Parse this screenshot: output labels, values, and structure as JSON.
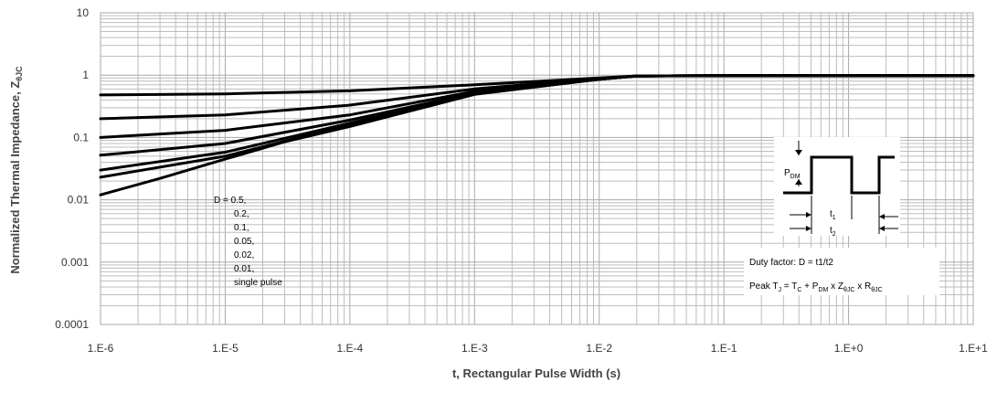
{
  "chart_data": {
    "type": "line",
    "xscale": "log",
    "yscale": "log",
    "xlim": [
      1e-06,
      10
    ],
    "ylim": [
      0.0001,
      10
    ],
    "grid": true,
    "xlabel": "t, Rectangular Pulse Width (s)",
    "ylabel": {
      "main": "Normalized Thermal Impedance, Z",
      "sub": "θJC"
    },
    "x_ticks": [
      {
        "value": 1e-06,
        "label": "1.E-6"
      },
      {
        "value": 1e-05,
        "label": "1.E-5"
      },
      {
        "value": 0.0001,
        "label": "1.E-4"
      },
      {
        "value": 0.001,
        "label": "1.E-3"
      },
      {
        "value": 0.01,
        "label": "1.E-2"
      },
      {
        "value": 0.1,
        "label": "1.E-1"
      },
      {
        "value": 1,
        "label": "1.E+0"
      },
      {
        "value": 10,
        "label": "1.E+1"
      }
    ],
    "y_ticks": [
      {
        "value": 10,
        "label": "10"
      },
      {
        "value": 1,
        "label": "1"
      },
      {
        "value": 0.1,
        "label": "0.1"
      },
      {
        "value": 0.01,
        "label": "0.01"
      },
      {
        "value": 0.001,
        "label": "0.001"
      },
      {
        "value": 0.0001,
        "label": "0.0001"
      }
    ],
    "series": [
      {
        "x": [
          1e-06,
          1e-05,
          0.0001,
          0.001,
          0.01,
          0.02,
          0.1,
          1,
          10
        ],
        "y": [
          0.48,
          0.5,
          0.56,
          0.7,
          0.9,
          0.97,
          0.98,
          0.98,
          0.98
        ]
      },
      {
        "x": [
          1e-06,
          1e-05,
          0.0001,
          0.001,
          0.01,
          0.02,
          0.1,
          1,
          10
        ],
        "y": [
          0.2,
          0.23,
          0.33,
          0.6,
          0.88,
          0.97,
          0.98,
          0.98,
          0.98
        ]
      },
      {
        "x": [
          1e-06,
          1e-05,
          0.0001,
          0.001,
          0.01,
          0.02,
          0.1,
          1,
          10
        ],
        "y": [
          0.1,
          0.13,
          0.23,
          0.55,
          0.87,
          0.97,
          0.98,
          0.98,
          0.98
        ]
      },
      {
        "x": [
          1e-06,
          1e-05,
          0.0001,
          0.001,
          0.01,
          0.02,
          0.1,
          1,
          10
        ],
        "y": [
          0.052,
          0.08,
          0.19,
          0.52,
          0.86,
          0.97,
          0.98,
          0.98,
          0.98
        ]
      },
      {
        "x": [
          1e-06,
          1e-05,
          0.0001,
          0.001,
          0.01,
          0.02,
          0.1,
          1,
          10
        ],
        "y": [
          0.03,
          0.058,
          0.17,
          0.5,
          0.86,
          0.97,
          0.98,
          0.98,
          0.98
        ]
      },
      {
        "x": [
          1e-06,
          1e-05,
          0.0001,
          0.001,
          0.01,
          0.02,
          0.1,
          1,
          10
        ],
        "y": [
          0.023,
          0.05,
          0.16,
          0.5,
          0.86,
          0.97,
          0.98,
          0.98,
          0.98
        ]
      },
      {
        "x": [
          1e-06,
          3e-06,
          1e-05,
          3e-05,
          0.0001,
          0.001,
          0.01,
          0.02,
          0.1,
          1,
          10
        ],
        "y": [
          0.012,
          0.022,
          0.045,
          0.085,
          0.15,
          0.49,
          0.86,
          0.97,
          0.98,
          0.98,
          0.98
        ]
      }
    ],
    "legend_text": [
      "D = 0.5,",
      "0.2,",
      "0.1,",
      "0.05,",
      "0.02,",
      "0.01,",
      "single pulse"
    ],
    "inset": {
      "pdm": {
        "main": "P",
        "sub": "DM"
      },
      "t1": {
        "main": "t",
        "sub": "1"
      },
      "t2": {
        "main": "t",
        "sub": "2"
      },
      "duty": "Duty factor: D = t1/t2",
      "peak": {
        "p1": "Peak T",
        "s1": "J",
        "p2": " = T",
        "s2": "C",
        "p3": " + P",
        "s3": "DM",
        "p4": " x Z",
        "s4": "θJC",
        "p5": " x R",
        "s5": "θJC"
      }
    },
    "colors": {
      "line": "#000000",
      "grid": "#bdbdbd",
      "grid_major": "#a9a9a9",
      "text": "#333333"
    }
  }
}
